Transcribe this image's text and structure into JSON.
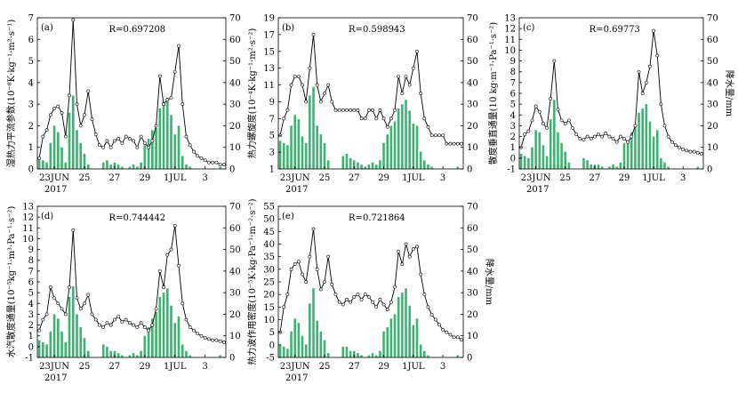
{
  "chart_data": [
    {
      "type": "bar+line",
      "panel_label": "(a)",
      "r_label": "R=0.697208",
      "ylabel_left": "湿热力平流参数(10⁻⁸K·kg⁻¹·m²·s⁻¹)",
      "ylabel_right": "",
      "ylim_left": [
        0,
        7
      ],
      "ylim_right": [
        0,
        70
      ],
      "yticks_left": [
        "0",
        "1",
        "2",
        "3",
        "4",
        "5",
        "6",
        "7"
      ],
      "yticks_right": [
        "0",
        "10",
        "20",
        "30",
        "40",
        "50",
        "60",
        "70"
      ],
      "xticks": [
        "23JUN",
        "25",
        "27",
        "29",
        "1JUL",
        "3"
      ],
      "xtick_days": [
        1,
        3,
        5,
        7,
        9,
        11
      ],
      "year_label": "2017",
      "bars": [
        5,
        4,
        3,
        12,
        20,
        17,
        10,
        3,
        26,
        34,
        18,
        12,
        7,
        2,
        0,
        0,
        0,
        3,
        4,
        2,
        3,
        2,
        1,
        0,
        1,
        2,
        1,
        3,
        11,
        14,
        18,
        19,
        28,
        31,
        33,
        25,
        16,
        20,
        6,
        2,
        1,
        0,
        0,
        0,
        0,
        0,
        0,
        0,
        1,
        0
      ],
      "line": [
        0.5,
        1.5,
        1.8,
        2.5,
        2.8,
        2.9,
        2.6,
        1.5,
        3.4,
        6.9,
        3.0,
        2.0,
        2.5,
        3.6,
        2.3,
        1.6,
        1.1,
        1.0,
        1.3,
        1.0,
        1.3,
        1.4,
        1.2,
        1.5,
        1.4,
        1.3,
        1.0,
        1.5,
        1.2,
        1.0,
        1.3,
        2.0,
        4.3,
        3.0,
        3.2,
        3.3,
        4.5,
        5.7,
        3.0,
        1.5,
        1.1,
        0.8,
        0.6,
        0.5,
        0.4,
        0.3,
        0.3,
        0.3,
        0.2,
        0.2
      ]
    },
    {
      "type": "bar+line",
      "panel_label": "(b)",
      "r_label": "R=0.598943",
      "ylabel_left": "热力螺旋度(10⁻⁴K·kg⁻¹·m²·s⁻²)",
      "ylabel_right": "",
      "ylim_left": [
        1,
        19
      ],
      "ylim_right": [
        0,
        70
      ],
      "yticks_left": [
        "1",
        "3",
        "5",
        "7",
        "9",
        "11",
        "13",
        "15",
        "17",
        "19"
      ],
      "yticks_right": [
        "0",
        "10",
        "20",
        "30",
        "40",
        "50",
        "60",
        "70"
      ],
      "xticks": [
        "23JUN",
        "25",
        "27",
        "29",
        "1JUL",
        "3"
      ],
      "xtick_days": [
        1,
        3,
        5,
        7,
        9,
        11
      ],
      "year_label": "2017",
      "bars": [
        13,
        12,
        11,
        20,
        25,
        23,
        15,
        12,
        34,
        38,
        20,
        16,
        12,
        4,
        0,
        0,
        0,
        6,
        7,
        5,
        4,
        3,
        2,
        1,
        2,
        3,
        2,
        4,
        12,
        16,
        20,
        22,
        28,
        30,
        32,
        27,
        21,
        20,
        8,
        4,
        2,
        1,
        0,
        0,
        0,
        0,
        0,
        0,
        1,
        0
      ],
      "line": [
        5,
        7,
        8,
        11,
        12,
        12,
        11,
        9,
        13,
        17,
        11,
        9,
        10,
        11,
        9,
        8,
        8,
        8,
        8,
        8,
        8,
        8,
        7,
        7,
        8,
        8,
        7,
        8,
        7,
        6,
        7,
        8,
        12,
        10,
        12,
        11,
        13,
        15,
        10,
        7,
        6,
        5,
        5,
        5,
        5,
        4,
        4,
        4,
        4,
        4
      ]
    },
    {
      "type": "bar+line",
      "panel_label": "(c)",
      "r_label": "R=0.69773",
      "ylabel_left": "散度垂直通量(10 kg·m⁻¹·Pa⁻¹·s⁻²)",
      "ylabel_right": "降水量/mm",
      "ylim_left": [
        -1,
        13
      ],
      "ylim_right": [
        0,
        70
      ],
      "yticks_left": [
        "-1",
        "0",
        "1",
        "2",
        "3",
        "4",
        "5",
        "6",
        "7",
        "8",
        "9",
        "10",
        "11",
        "12",
        "13"
      ],
      "yticks_right": [
        "0",
        "10",
        "20",
        "30",
        "40",
        "50",
        "60",
        "70"
      ],
      "xticks": [
        "23JUN",
        "25",
        "27",
        "29",
        "1JUL",
        "3"
      ],
      "xtick_days": [
        1,
        3,
        5,
        7,
        9,
        11
      ],
      "year_label": "2017",
      "bars": [
        7,
        6,
        5,
        10,
        18,
        17,
        11,
        6,
        23,
        32,
        17,
        12,
        8,
        3,
        0,
        0,
        0,
        5,
        4,
        2,
        2,
        2,
        1,
        0,
        1,
        2,
        1,
        3,
        12,
        13,
        17,
        20,
        26,
        28,
        30,
        22,
        15,
        18,
        5,
        3,
        1,
        0,
        0,
        0,
        0,
        0,
        0,
        0,
        1,
        0
      ],
      "line": [
        1,
        2.2,
        2.5,
        3.5,
        4.8,
        4.3,
        3.2,
        2.8,
        5.5,
        9.0,
        4.5,
        3.5,
        3.2,
        3.5,
        2.8,
        2.2,
        1.8,
        1.7,
        2.0,
        1.8,
        2.0,
        2.2,
        2.0,
        2.3,
        2.0,
        1.8,
        1.5,
        2.0,
        1.8,
        1.5,
        2.0,
        3.0,
        8.0,
        6.0,
        7.0,
        8.5,
        11.8,
        9.5,
        5.0,
        3.0,
        2.0,
        1.5,
        1.2,
        1.0,
        0.8,
        0.7,
        0.6,
        0.6,
        0.5,
        0.4
      ]
    },
    {
      "type": "bar+line",
      "panel_label": "(d)",
      "r_label": "R=0.744442",
      "ylabel_left": "水汽散度通量(10⁻⁵kg⁻¹·m³·Pa⁻¹·s⁻²)",
      "ylabel_right": "",
      "ylim_left": [
        -1,
        13
      ],
      "ylim_right": [
        0,
        70
      ],
      "yticks_left": [
        "-1",
        "0",
        "1",
        "2",
        "3",
        "4",
        "5",
        "6",
        "7",
        "8",
        "9",
        "10",
        "11",
        "12",
        "13"
      ],
      "yticks_right": [
        "0",
        "10",
        "20",
        "30",
        "40",
        "50",
        "60",
        "70"
      ],
      "xticks": [
        "23JUN",
        "25",
        "27",
        "29",
        "1JUL",
        "3"
      ],
      "xtick_days": [
        1,
        3,
        5,
        7,
        9,
        11
      ],
      "year_label": "2017",
      "bars": [
        8,
        7,
        6,
        12,
        20,
        18,
        12,
        7,
        28,
        33,
        20,
        14,
        9,
        3,
        0,
        0,
        0,
        6,
        5,
        3,
        3,
        2,
        1,
        0,
        1,
        2,
        1,
        3,
        10,
        14,
        18,
        21,
        28,
        30,
        32,
        24,
        16,
        19,
        6,
        3,
        1,
        0,
        0,
        0,
        0,
        0,
        0,
        0,
        1,
        0
      ],
      "line": [
        1.5,
        2.5,
        3.0,
        5.5,
        4.5,
        4.0,
        3.5,
        3.0,
        5.5,
        10.8,
        4.5,
        3.5,
        4.0,
        4.8,
        3.0,
        2.5,
        2.0,
        1.8,
        2.2,
        2.0,
        2.5,
        2.8,
        2.3,
        2.5,
        2.2,
        2.0,
        1.8,
        2.2,
        1.8,
        1.5,
        2.0,
        3.5,
        7.0,
        5.5,
        8.5,
        9.0,
        11.2,
        7.5,
        4.0,
        2.5,
        1.8,
        1.5,
        1.2,
        1.0,
        0.8,
        0.7,
        0.6,
        0.6,
        0.5,
        0.4
      ]
    },
    {
      "type": "bar+line",
      "panel_label": "(e)",
      "r_label": "R=0.721864",
      "ylabel_left": "热力波作用密度(10⁻⁵K·kg·Pa⁻¹·m⁻²·s⁻²)",
      "ylabel_right": "降水量/mm",
      "ylim_left": [
        -5,
        55
      ],
      "ylim_right": [
        0,
        70
      ],
      "yticks_left": [
        "-5",
        "0",
        "5",
        "10",
        "15",
        "20",
        "25",
        "30",
        "35",
        "40",
        "45",
        "50",
        "55"
      ],
      "yticks_right": [
        "0",
        "10",
        "20",
        "30",
        "40",
        "50",
        "60",
        "70"
      ],
      "xticks": [
        "23JUN",
        "25",
        "27",
        "29",
        "1JUL",
        "3"
      ],
      "xtick_days": [
        1,
        3,
        5,
        7,
        9,
        11
      ],
      "year_label": "2017",
      "bars": [
        6,
        5,
        4,
        12,
        18,
        16,
        10,
        6,
        25,
        32,
        17,
        12,
        8,
        2,
        0,
        0,
        0,
        5,
        5,
        3,
        3,
        2,
        1,
        0,
        1,
        2,
        1,
        3,
        12,
        14,
        18,
        20,
        28,
        30,
        32,
        24,
        15,
        18,
        6,
        3,
        1,
        0,
        0,
        0,
        0,
        0,
        0,
        0,
        1,
        0
      ],
      "line": [
        5,
        15,
        20,
        30,
        32,
        33,
        28,
        25,
        35,
        46,
        30,
        22,
        25,
        35,
        24,
        20,
        17,
        16,
        18,
        17,
        19,
        20,
        18,
        20,
        19,
        17,
        15,
        18,
        16,
        14,
        17,
        23,
        37,
        32,
        40,
        35,
        38,
        39,
        28,
        20,
        15,
        12,
        10,
        8,
        6,
        5,
        4,
        3,
        3,
        2
      ]
    }
  ]
}
